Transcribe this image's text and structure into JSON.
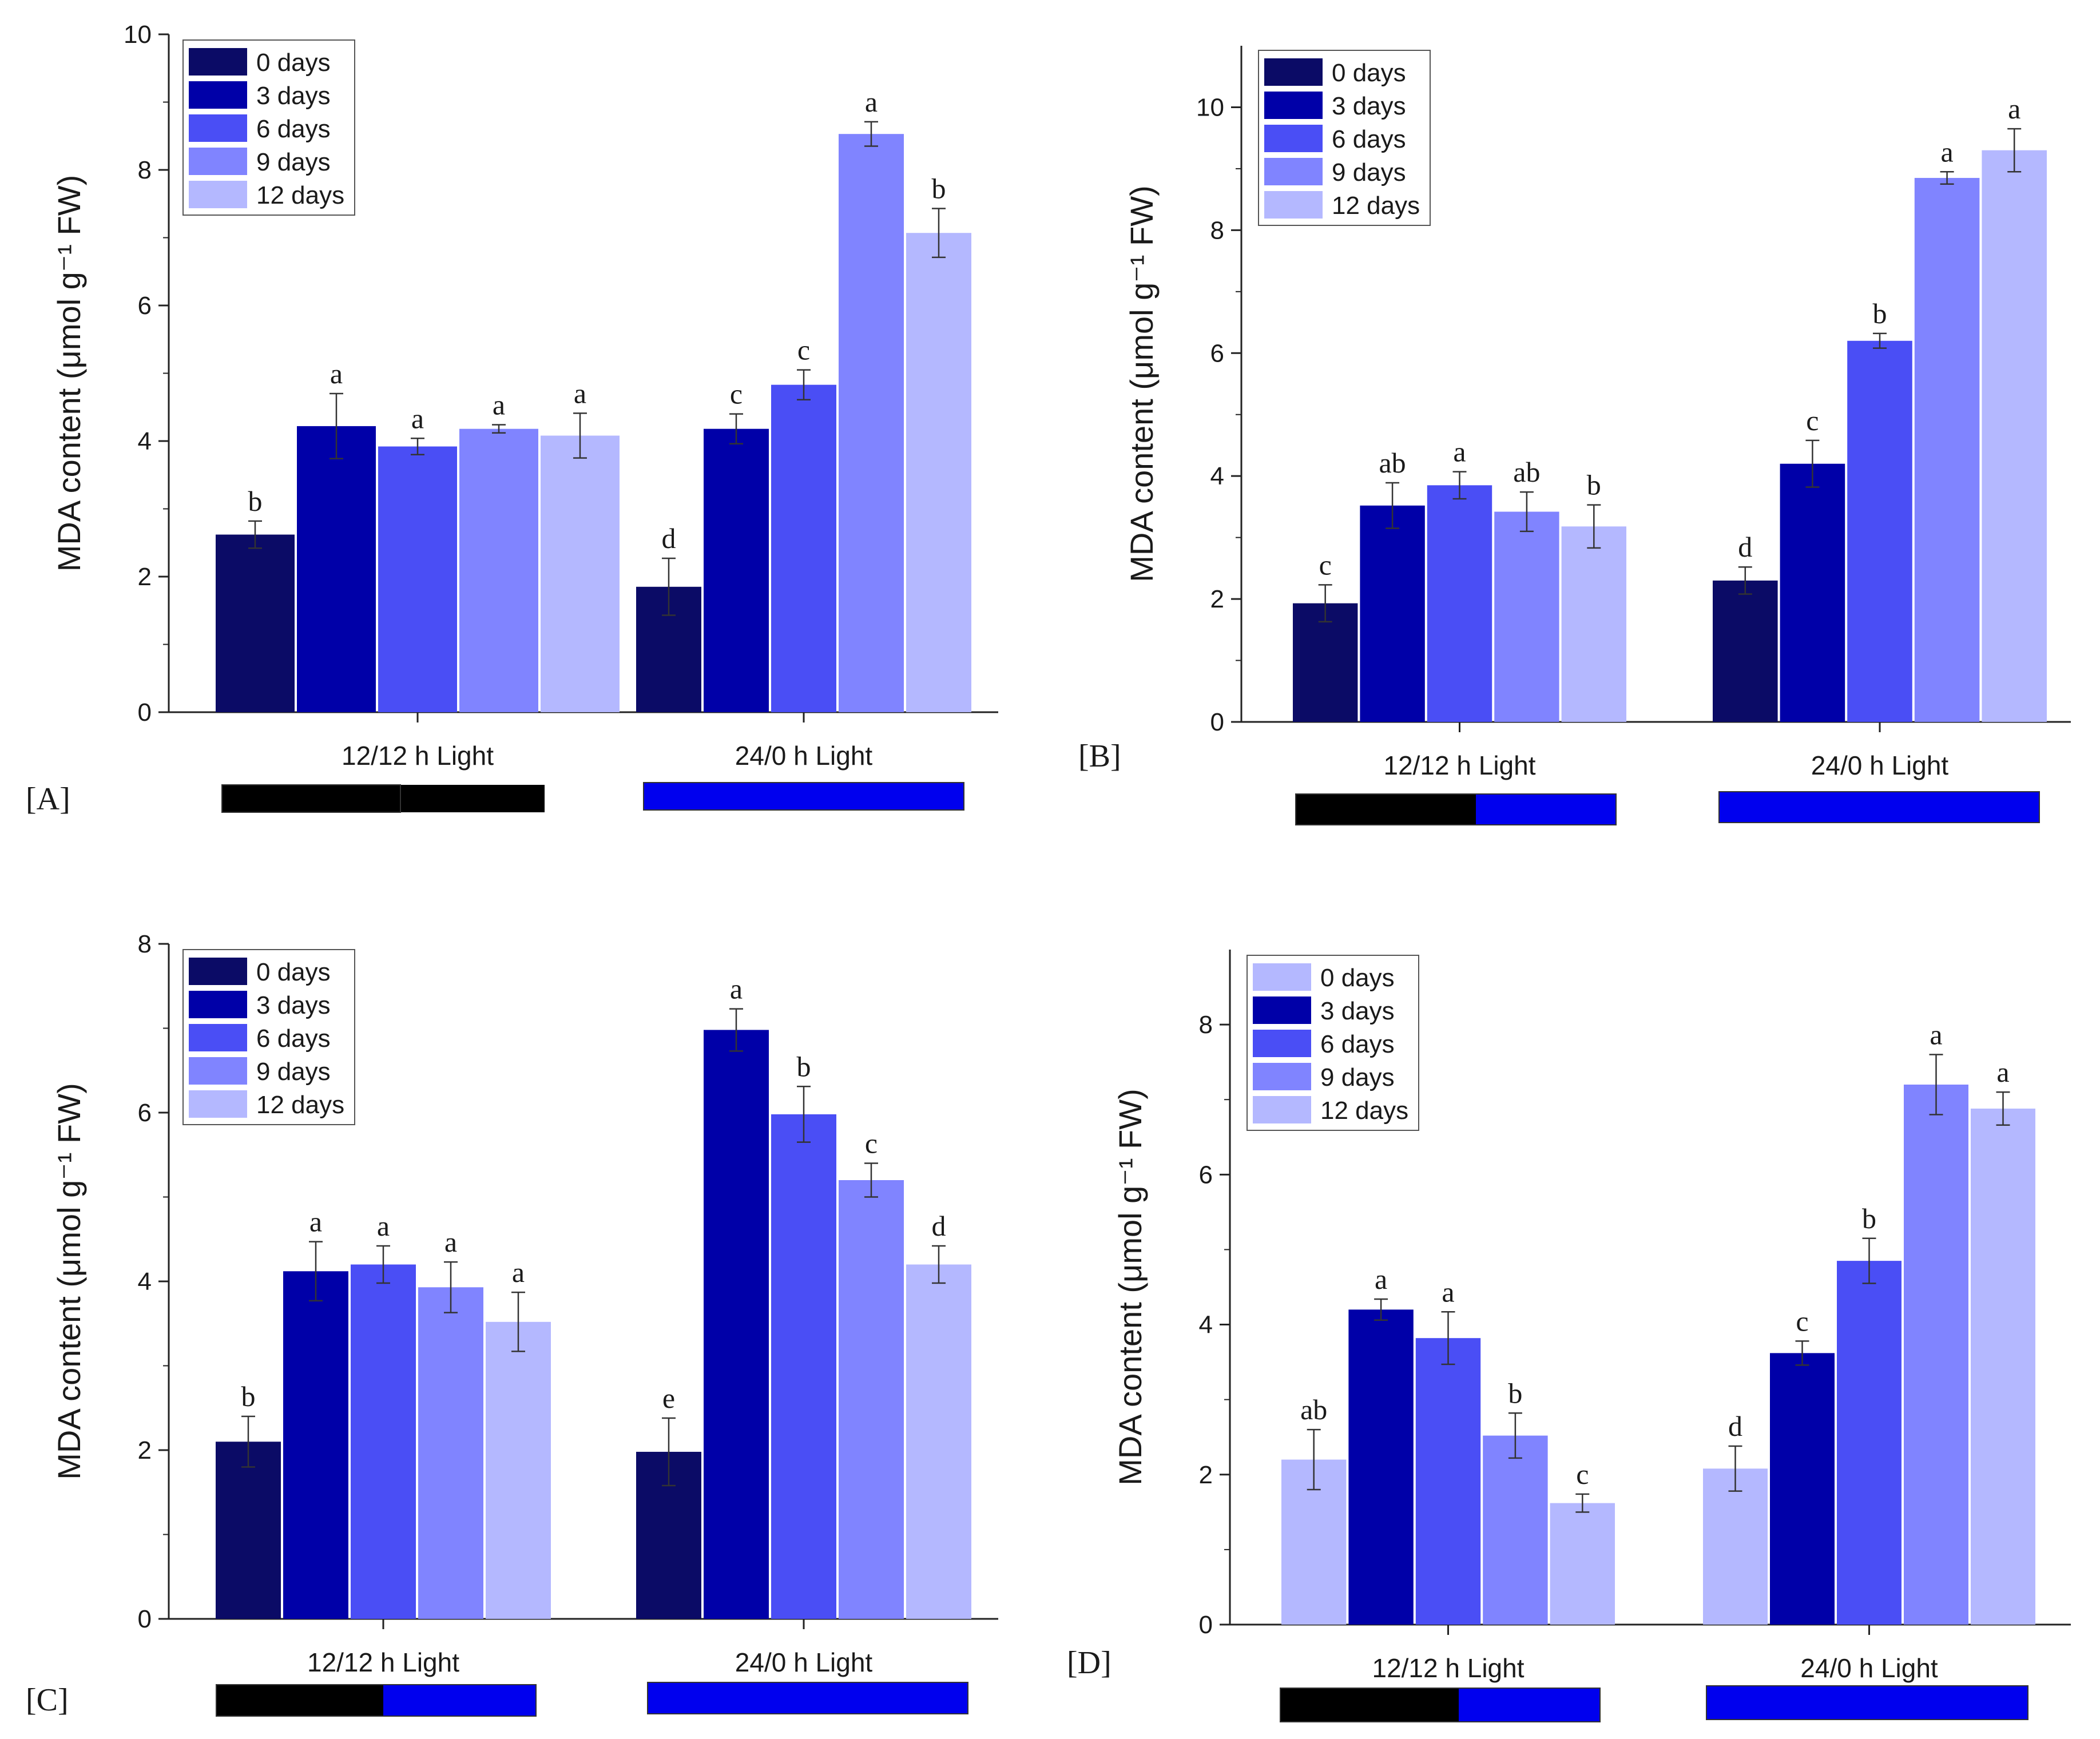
{
  "y_axis_label": "MDA content (μmol g⁻¹ FW)",
  "colors": {
    "series": [
      "#0b0b66",
      "#0000a8",
      "#4a4ef5",
      "#8084ff",
      "#b4b8ff"
    ],
    "photoperiod_dark": "#000000",
    "photoperiod_light": "#0000ee",
    "axis": "#222222"
  },
  "chart_data": [
    {
      "type": "bar",
      "panel_label": "[A]",
      "categories": [
        "12/12 h Light",
        "24/0 h Light"
      ],
      "ylim": [
        0,
        10
      ],
      "yticks": [
        0,
        2,
        4,
        6,
        8,
        10
      ],
      "legend": {
        "placement": "top-left",
        "entries": [
          "0 days",
          "3 days",
          "6 days",
          "9 days",
          "12 days"
        ],
        "color_index": [
          0,
          1,
          2,
          3,
          4
        ]
      },
      "series": [
        {
          "name": "0 days",
          "values": [
            2.62,
            1.85
          ],
          "errors": [
            0.2,
            0.42
          ],
          "letters": [
            "b",
            "d"
          ]
        },
        {
          "name": "3 days",
          "values": [
            4.22,
            4.18
          ],
          "errors": [
            0.48,
            0.22
          ],
          "letters": [
            "a",
            "c"
          ]
        },
        {
          "name": "6 days",
          "values": [
            3.92,
            4.83
          ],
          "errors": [
            0.12,
            0.22
          ],
          "letters": [
            "a",
            "c"
          ]
        },
        {
          "name": "9 days",
          "values": [
            4.18,
            8.53
          ],
          "errors": [
            0.06,
            0.18
          ],
          "letters": [
            "a",
            "a"
          ]
        },
        {
          "name": "12 days",
          "values": [
            4.08,
            7.07
          ],
          "errors": [
            0.33,
            0.36
          ],
          "letters": [
            "a",
            "b"
          ]
        }
      ]
    },
    {
      "type": "bar",
      "panel_label": "[B]",
      "categories": [
        "12/12 h Light",
        "24/0 h Light"
      ],
      "ylim": [
        0,
        11
      ],
      "yticks": [
        0,
        2,
        4,
        6,
        8,
        10
      ],
      "legend": {
        "placement": "top-left",
        "entries": [
          "0 days",
          "3 days",
          "6 days",
          "9 days",
          "12 days"
        ],
        "color_index": [
          0,
          1,
          2,
          3,
          4
        ]
      },
      "series": [
        {
          "name": "0 days",
          "values": [
            1.93,
            2.3
          ],
          "errors": [
            0.3,
            0.22
          ],
          "letters": [
            "c",
            "d"
          ]
        },
        {
          "name": "3 days",
          "values": [
            3.52,
            4.2
          ],
          "errors": [
            0.37,
            0.38
          ],
          "letters": [
            "ab",
            "c"
          ]
        },
        {
          "name": "6 days",
          "values": [
            3.85,
            6.2
          ],
          "errors": [
            0.22,
            0.12
          ],
          "letters": [
            "a",
            "b"
          ]
        },
        {
          "name": "9 days",
          "values": [
            3.42,
            8.85
          ],
          "errors": [
            0.32,
            0.1
          ],
          "letters": [
            "ab",
            "a"
          ]
        },
        {
          "name": "12 days",
          "values": [
            3.18,
            9.3
          ],
          "errors": [
            0.35,
            0.35
          ],
          "letters": [
            "b",
            "a"
          ]
        }
      ]
    },
    {
      "type": "bar",
      "panel_label": "[C]",
      "categories": [
        "12/12 h Light",
        "24/0 h Light"
      ],
      "ylim": [
        0,
        8
      ],
      "yticks": [
        0,
        2,
        4,
        6,
        8
      ],
      "legend": {
        "placement": "top-left",
        "entries": [
          "0 days",
          "3 days",
          "6 days",
          "9 days",
          "12 days"
        ],
        "color_index": [
          0,
          1,
          2,
          3,
          4
        ]
      },
      "series": [
        {
          "name": "0 days",
          "values": [
            2.1,
            1.98
          ],
          "errors": [
            0.3,
            0.4
          ],
          "letters": [
            "b",
            "e"
          ]
        },
        {
          "name": "3 days",
          "values": [
            4.12,
            6.98
          ],
          "errors": [
            0.35,
            0.25
          ],
          "letters": [
            "a",
            "a"
          ]
        },
        {
          "name": "6 days",
          "values": [
            4.2,
            5.98
          ],
          "errors": [
            0.22,
            0.33
          ],
          "letters": [
            "a",
            "b"
          ]
        },
        {
          "name": "9 days",
          "values": [
            3.93,
            5.2
          ],
          "errors": [
            0.3,
            0.2
          ],
          "letters": [
            "a",
            "c"
          ]
        },
        {
          "name": "12 days",
          "values": [
            3.52,
            4.2
          ],
          "errors": [
            0.35,
            0.22
          ],
          "letters": [
            "a",
            "d"
          ]
        }
      ]
    },
    {
      "type": "bar",
      "panel_label": "[D]",
      "categories": [
        "12/12 h Light",
        "24/0 h Light"
      ],
      "ylim": [
        0,
        9
      ],
      "yticks": [
        0,
        2,
        4,
        6,
        8
      ],
      "legend": {
        "placement": "top-left",
        "entries": [
          "0 days",
          "3 days",
          "6 days",
          "9 days",
          "12 days"
        ],
        "color_index": [
          4,
          1,
          2,
          3,
          4
        ]
      },
      "series": [
        {
          "name": "0 days",
          "values": [
            2.2,
            2.08
          ],
          "errors": [
            0.4,
            0.3
          ],
          "letters": [
            "ab",
            "d"
          ]
        },
        {
          "name": "3 days",
          "values": [
            4.2,
            3.62
          ],
          "errors": [
            0.14,
            0.16
          ],
          "letters": [
            "a",
            "c"
          ]
        },
        {
          "name": "6 days",
          "values": [
            3.82,
            4.85
          ],
          "errors": [
            0.35,
            0.3
          ],
          "letters": [
            "a",
            "b"
          ]
        },
        {
          "name": "9 days",
          "values": [
            2.52,
            7.2
          ],
          "errors": [
            0.3,
            0.4
          ],
          "letters": [
            "b",
            "a"
          ]
        },
        {
          "name": "12 days",
          "values": [
            1.62,
            6.88
          ],
          "errors": [
            0.12,
            0.22
          ],
          "letters": [
            "c",
            "a"
          ]
        }
      ]
    }
  ]
}
